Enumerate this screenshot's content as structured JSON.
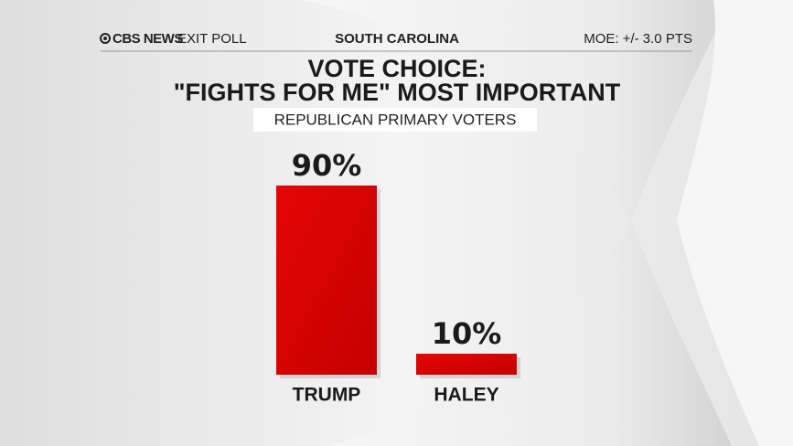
{
  "chart_data": {
    "type": "bar",
    "brand": "CBS NEWS",
    "program": "EXIT POLL",
    "location": "SOUTH CAROLINA",
    "note": "MOE: +/- 3.0 PTS",
    "title": [
      "VOTE CHOICE:",
      "\"FIGHTS FOR ME\" MOST IMPORTANT"
    ],
    "subtitle": "REPUBLICAN PRIMARY VOTERS",
    "categories": [
      "TRUMP",
      "HALEY"
    ],
    "values": [
      90,
      10
    ],
    "value_labels": [
      "90%",
      "10%"
    ],
    "color": "#d90000"
  }
}
